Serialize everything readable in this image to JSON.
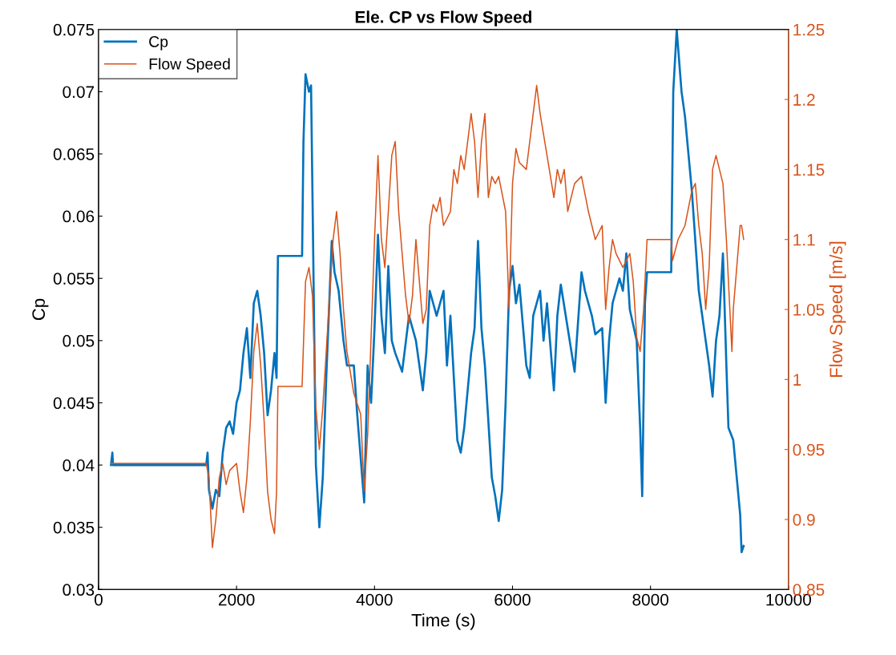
{
  "chart_data": {
    "type": "line",
    "title": "Ele. CP vs Flow Speed",
    "xlabel": "Time (s)",
    "ylabel": "Cp",
    "y2label": "Flow Speed [m/s]",
    "xlim": [
      0,
      10000
    ],
    "xticks": [
      0,
      2000,
      4000,
      6000,
      8000,
      10000
    ],
    "ylim": [
      0.03,
      0.075
    ],
    "yticks": [
      0.03,
      0.035,
      0.04,
      0.045,
      0.05,
      0.055,
      0.06,
      0.065,
      0.07,
      0.075
    ],
    "y2lim": [
      0.85,
      1.25
    ],
    "y2ticks": [
      0.85,
      0.9,
      0.95,
      1,
      1.05,
      1.1,
      1.15,
      1.2,
      1.25
    ],
    "legend": "top left",
    "grid": false,
    "series": [
      {
        "name": "Cp",
        "color": "#0072bd",
        "x": [
          180,
          200,
          210,
          1560,
          1580,
          1600,
          1650,
          1700,
          1750,
          1800,
          1850,
          1900,
          1950,
          2000,
          2050,
          2100,
          2150,
          2200,
          2250,
          2300,
          2350,
          2400,
          2450,
          2500,
          2550,
          2580,
          2600,
          2950,
          2970,
          3000,
          3050,
          3080,
          3100,
          3150,
          3200,
          3250,
          3300,
          3380,
          3420,
          3480,
          3550,
          3600,
          3700,
          3750,
          3850,
          3900,
          3950,
          4000,
          4050,
          4100,
          4150,
          4200,
          4250,
          4300,
          4400,
          4500,
          4600,
          4700,
          4750,
          4800,
          4900,
          5000,
          5050,
          5100,
          5150,
          5200,
          5250,
          5300,
          5400,
          5450,
          5500,
          5550,
          5600,
          5700,
          5750,
          5800,
          5850,
          5900,
          5950,
          6000,
          6050,
          6100,
          6200,
          6250,
          6300,
          6400,
          6450,
          6500,
          6600,
          6650,
          6700,
          6800,
          6900,
          7000,
          7050,
          7150,
          7200,
          7300,
          7350,
          7400,
          7450,
          7550,
          7600,
          7650,
          7700,
          7800,
          7850,
          7880,
          7920,
          7950,
          8300,
          8330,
          8380,
          8450,
          8500,
          8600,
          8700,
          8800,
          8850,
          8900,
          8950,
          9000,
          9050,
          9100,
          9130,
          9200,
          9250,
          9300,
          9320,
          9350
        ],
        "values": [
          0.04,
          0.041,
          0.04,
          0.04,
          0.041,
          0.038,
          0.0365,
          0.038,
          0.0375,
          0.041,
          0.043,
          0.0435,
          0.0425,
          0.045,
          0.046,
          0.049,
          0.051,
          0.047,
          0.053,
          0.054,
          0.052,
          0.049,
          0.044,
          0.046,
          0.049,
          0.047,
          0.0568,
          0.0568,
          0.066,
          0.0714,
          0.07,
          0.0705,
          0.062,
          0.04,
          0.035,
          0.039,
          0.047,
          0.058,
          0.0555,
          0.054,
          0.05,
          0.048,
          0.048,
          0.044,
          0.037,
          0.048,
          0.045,
          0.051,
          0.0585,
          0.052,
          0.049,
          0.056,
          0.05,
          0.049,
          0.0475,
          0.052,
          0.05,
          0.046,
          0.049,
          0.054,
          0.052,
          0.054,
          0.048,
          0.052,
          0.047,
          0.042,
          0.041,
          0.043,
          0.049,
          0.051,
          0.058,
          0.051,
          0.048,
          0.039,
          0.0375,
          0.0355,
          0.038,
          0.045,
          0.054,
          0.056,
          0.053,
          0.0545,
          0.048,
          0.047,
          0.052,
          0.054,
          0.05,
          0.053,
          0.046,
          0.052,
          0.0545,
          0.051,
          0.0475,
          0.0555,
          0.054,
          0.052,
          0.0505,
          0.051,
          0.045,
          0.05,
          0.053,
          0.055,
          0.054,
          0.057,
          0.0525,
          0.05,
          0.043,
          0.0375,
          0.053,
          0.0555,
          0.0555,
          0.07,
          0.075,
          0.07,
          0.068,
          0.062,
          0.054,
          0.05,
          0.048,
          0.0455,
          0.05,
          0.052,
          0.057,
          0.048,
          0.043,
          0.042,
          0.039,
          0.036,
          0.033,
          0.0335
        ]
      },
      {
        "name": "Flow Speed",
        "color": "#d95319",
        "axis": "y2",
        "x": [
          180,
          1560,
          1600,
          1650,
          1700,
          1750,
          1800,
          1850,
          1900,
          2000,
          2050,
          2100,
          2150,
          2200,
          2250,
          2300,
          2350,
          2400,
          2450,
          2500,
          2550,
          2580,
          2600,
          2950,
          3000,
          3050,
          3100,
          3150,
          3200,
          3250,
          3300,
          3400,
          3450,
          3500,
          3550,
          3600,
          3700,
          3800,
          3850,
          3900,
          4000,
          4050,
          4100,
          4150,
          4200,
          4250,
          4300,
          4350,
          4450,
          4500,
          4550,
          4600,
          4650,
          4700,
          4750,
          4800,
          4850,
          4900,
          4950,
          5000,
          5100,
          5150,
          5200,
          5250,
          5300,
          5400,
          5450,
          5500,
          5550,
          5600,
          5650,
          5700,
          5750,
          5800,
          5900,
          5950,
          6000,
          6050,
          6100,
          6200,
          6300,
          6350,
          6400,
          6500,
          6600,
          6650,
          6700,
          6750,
          6800,
          6900,
          7000,
          7100,
          7200,
          7300,
          7350,
          7400,
          7450,
          7500,
          7600,
          7650,
          7700,
          7750,
          7800,
          7850,
          7900,
          7950,
          8300,
          8320,
          8400,
          8500,
          8600,
          8650,
          8700,
          8750,
          8800,
          8850,
          8900,
          8950,
          9000,
          9050,
          9100,
          9150,
          9180,
          9200,
          9250,
          9300,
          9320,
          9350
        ],
        "values": [
          0.94,
          0.94,
          0.93,
          0.88,
          0.9,
          0.93,
          0.94,
          0.925,
          0.935,
          0.94,
          0.92,
          0.905,
          0.93,
          0.97,
          1.02,
          1.04,
          1.01,
          0.97,
          0.92,
          0.9,
          0.89,
          0.92,
          0.995,
          0.995,
          1.07,
          1.08,
          1.06,
          0.98,
          0.95,
          0.98,
          1.02,
          1.1,
          1.12,
          1.09,
          1.05,
          1.02,
          0.99,
          0.975,
          0.92,
          0.96,
          1.1,
          1.16,
          1.1,
          1.08,
          1.12,
          1.16,
          1.17,
          1.12,
          1.06,
          1.04,
          1.06,
          1.1,
          1.07,
          1.04,
          1.05,
          1.11,
          1.125,
          1.12,
          1.13,
          1.11,
          1.12,
          1.15,
          1.14,
          1.16,
          1.15,
          1.19,
          1.17,
          1.13,
          1.17,
          1.19,
          1.13,
          1.145,
          1.14,
          1.145,
          1.12,
          1.05,
          1.14,
          1.165,
          1.155,
          1.15,
          1.19,
          1.21,
          1.19,
          1.16,
          1.13,
          1.15,
          1.14,
          1.15,
          1.12,
          1.14,
          1.145,
          1.12,
          1.1,
          1.11,
          1.05,
          1.08,
          1.1,
          1.09,
          1.08,
          1.085,
          1.09,
          1.07,
          1.03,
          1.02,
          1.05,
          1.1,
          1.1,
          1.085,
          1.1,
          1.11,
          1.135,
          1.14,
          1.11,
          1.09,
          1.05,
          1.08,
          1.15,
          1.16,
          1.15,
          1.14,
          1.1,
          1.05,
          1.02,
          1.05,
          1.08,
          1.11,
          1.11,
          1.1
        ]
      }
    ]
  }
}
